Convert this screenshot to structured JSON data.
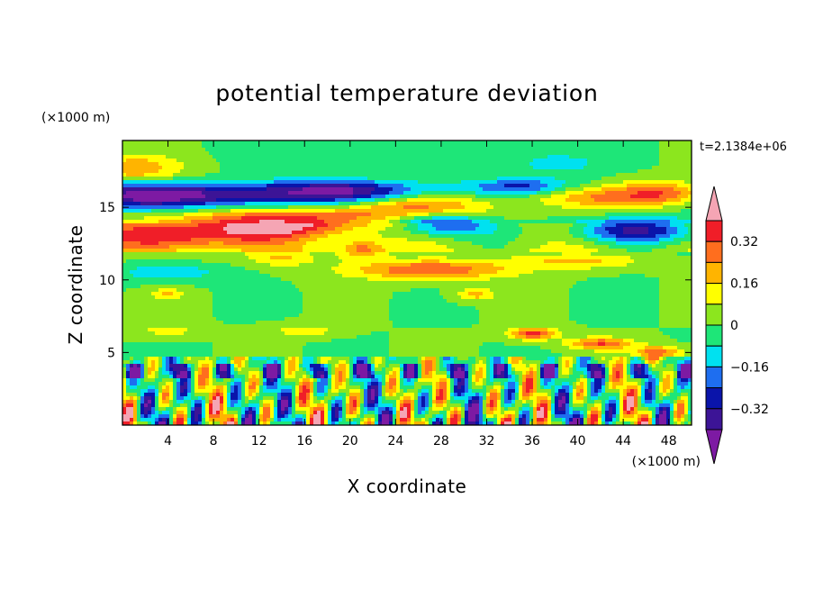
{
  "chart_data": {
    "type": "heatmap",
    "title": "potential temperature deviation",
    "time_label": "t=2.1384e+06",
    "x_axis": {
      "label": "X coordinate",
      "unit": "(×1000 m)",
      "range": [
        0,
        50
      ],
      "ticks": [
        4,
        8,
        12,
        16,
        20,
        24,
        28,
        32,
        36,
        40,
        44,
        48
      ]
    },
    "y_axis": {
      "label": "Z coordinate",
      "unit": "(×1000 m)",
      "range": [
        0,
        19.6
      ],
      "ticks": [
        5,
        10,
        15
      ]
    },
    "colorbar": {
      "levels": [
        -0.4,
        -0.32,
        -0.24,
        -0.16,
        -0.08,
        0,
        0.08,
        0.16,
        0.24,
        0.32,
        0.4
      ],
      "labeled_ticks": [
        {
          "value": 0.32,
          "label": "0.32"
        },
        {
          "value": 0.16,
          "label": "0.16"
        },
        {
          "value": 0,
          "label": "0"
        },
        {
          "value": -0.16,
          "label": "−0.16"
        },
        {
          "value": -0.32,
          "label": "−0.32"
        }
      ],
      "colors": [
        "#7d1aa3",
        "#3c1496",
        "#0a14aa",
        "#1e6ef0",
        "#00e1f0",
        "#1ee678",
        "#8ce61e",
        "#ffff00",
        "#ffb400",
        "#ff6e1e",
        "#f01e28",
        "#f5a5b4"
      ],
      "extend": "both"
    },
    "grid": false,
    "legend_placement": "right"
  }
}
